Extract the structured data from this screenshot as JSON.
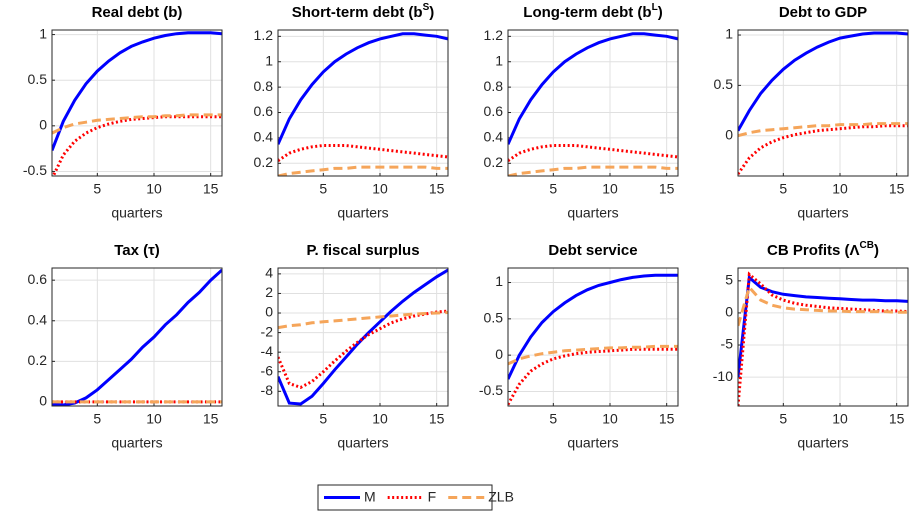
{
  "chart_data": [
    {
      "type": "line",
      "title": "Real debt (b)",
      "xlabel": "quarters",
      "x": [
        1,
        2,
        3,
        4,
        5,
        6,
        7,
        8,
        9,
        10,
        11,
        12,
        13,
        14,
        15,
        16
      ],
      "xlim": [
        1,
        16
      ],
      "xticks": [
        5,
        10,
        15
      ],
      "ylim": [
        -0.55,
        1.05
      ],
      "yticks": [
        -0.5,
        0,
        0.5,
        1
      ],
      "grid": true,
      "series": [
        {
          "name": "M",
          "color": "#0000ff",
          "dash": "solid",
          "values": [
            -0.27,
            0.05,
            0.28,
            0.46,
            0.6,
            0.71,
            0.8,
            0.87,
            0.92,
            0.96,
            0.99,
            1.01,
            1.02,
            1.02,
            1.02,
            1.01
          ]
        },
        {
          "name": "F",
          "color": "#ff0000",
          "dash": "dotted",
          "values": [
            -0.58,
            -0.32,
            -0.17,
            -0.08,
            -0.02,
            0.02,
            0.05,
            0.07,
            0.08,
            0.09,
            0.1,
            0.1,
            0.1,
            0.1,
            0.1,
            0.1
          ]
        },
        {
          "name": "ZLB",
          "color": "#f5a55a",
          "dash": "dashed",
          "values": [
            -0.08,
            -0.02,
            0.02,
            0.04,
            0.06,
            0.07,
            0.08,
            0.09,
            0.1,
            0.1,
            0.11,
            0.11,
            0.12,
            0.12,
            0.12,
            0.12
          ]
        }
      ]
    },
    {
      "type": "line",
      "title": {
        "text": "Short-term debt (b",
        "sup": "S",
        "close": ")"
      },
      "xlabel": "quarters",
      "x": [
        1,
        2,
        3,
        4,
        5,
        6,
        7,
        8,
        9,
        10,
        11,
        12,
        13,
        14,
        15,
        16
      ],
      "xlim": [
        1,
        16
      ],
      "xticks": [
        5,
        10,
        15
      ],
      "ylim": [
        0.1,
        1.25
      ],
      "yticks": [
        0.2,
        0.4,
        0.6,
        0.8,
        1,
        1.2
      ],
      "grid": true,
      "series": [
        {
          "name": "M",
          "color": "#0000ff",
          "dash": "solid",
          "values": [
            0.35,
            0.55,
            0.7,
            0.82,
            0.92,
            1.0,
            1.06,
            1.11,
            1.15,
            1.18,
            1.2,
            1.22,
            1.22,
            1.21,
            1.2,
            1.18
          ]
        },
        {
          "name": "F",
          "color": "#ff0000",
          "dash": "dotted",
          "values": [
            0.22,
            0.28,
            0.31,
            0.33,
            0.34,
            0.34,
            0.34,
            0.33,
            0.32,
            0.31,
            0.3,
            0.29,
            0.28,
            0.27,
            0.26,
            0.25
          ]
        },
        {
          "name": "ZLB",
          "color": "#f5a55a",
          "dash": "dashed",
          "values": [
            0.1,
            0.12,
            0.13,
            0.14,
            0.15,
            0.16,
            0.16,
            0.17,
            0.17,
            0.17,
            0.17,
            0.17,
            0.17,
            0.17,
            0.16,
            0.16
          ]
        }
      ]
    },
    {
      "type": "line",
      "title": {
        "text": "Long-term debt (b",
        "sup": "L",
        "close": ")"
      },
      "xlabel": "quarters",
      "x": [
        1,
        2,
        3,
        4,
        5,
        6,
        7,
        8,
        9,
        10,
        11,
        12,
        13,
        14,
        15,
        16
      ],
      "xlim": [
        1,
        16
      ],
      "xticks": [
        5,
        10,
        15
      ],
      "ylim": [
        0.1,
        1.25
      ],
      "yticks": [
        0.2,
        0.4,
        0.6,
        0.8,
        1,
        1.2
      ],
      "grid": true,
      "series": [
        {
          "name": "M",
          "color": "#0000ff",
          "dash": "solid",
          "values": [
            0.35,
            0.55,
            0.7,
            0.82,
            0.92,
            1.0,
            1.06,
            1.11,
            1.15,
            1.18,
            1.2,
            1.22,
            1.22,
            1.21,
            1.2,
            1.18
          ]
        },
        {
          "name": "F",
          "color": "#ff0000",
          "dash": "dotted",
          "values": [
            0.22,
            0.28,
            0.31,
            0.33,
            0.34,
            0.34,
            0.34,
            0.33,
            0.32,
            0.31,
            0.3,
            0.29,
            0.28,
            0.27,
            0.26,
            0.25
          ]
        },
        {
          "name": "ZLB",
          "color": "#f5a55a",
          "dash": "dashed",
          "values": [
            0.1,
            0.12,
            0.13,
            0.14,
            0.15,
            0.16,
            0.16,
            0.17,
            0.17,
            0.17,
            0.17,
            0.17,
            0.17,
            0.17,
            0.16,
            0.16
          ]
        }
      ]
    },
    {
      "type": "line",
      "title": "Debt to GDP",
      "xlabel": "quarters",
      "x": [
        1,
        2,
        3,
        4,
        5,
        6,
        7,
        8,
        9,
        10,
        11,
        12,
        13,
        14,
        15,
        16
      ],
      "xlim": [
        1,
        16
      ],
      "xticks": [
        5,
        10,
        15
      ],
      "ylim": [
        -0.4,
        1.05
      ],
      "yticks": [
        0,
        0.5,
        1
      ],
      "grid": true,
      "series": [
        {
          "name": "M",
          "color": "#0000ff",
          "dash": "solid",
          "values": [
            0.05,
            0.25,
            0.42,
            0.55,
            0.66,
            0.75,
            0.82,
            0.88,
            0.93,
            0.97,
            0.99,
            1.01,
            1.02,
            1.02,
            1.02,
            1.01
          ]
        },
        {
          "name": "F",
          "color": "#ff0000",
          "dash": "dotted",
          "values": [
            -0.38,
            -0.22,
            -0.12,
            -0.06,
            -0.02,
            0.01,
            0.03,
            0.05,
            0.06,
            0.07,
            0.08,
            0.09,
            0.09,
            0.1,
            0.1,
            0.1
          ]
        },
        {
          "name": "ZLB",
          "color": "#f5a55a",
          "dash": "dashed",
          "values": [
            0,
            0.03,
            0.05,
            0.06,
            0.07,
            0.08,
            0.09,
            0.1,
            0.1,
            0.11,
            0.11,
            0.11,
            0.12,
            0.12,
            0.12,
            0.12
          ]
        }
      ]
    },
    {
      "type": "line",
      "title": "Tax (τ)",
      "xlabel": "quarters",
      "x": [
        1,
        2,
        3,
        4,
        5,
        6,
        7,
        8,
        9,
        10,
        11,
        12,
        13,
        14,
        15,
        16
      ],
      "xlim": [
        1,
        16
      ],
      "xticks": [
        5,
        10,
        15
      ],
      "ylim": [
        -0.02,
        0.66
      ],
      "yticks": [
        0,
        0.2,
        0.4,
        0.6
      ],
      "grid": true,
      "series": [
        {
          "name": "M",
          "color": "#0000ff",
          "dash": "solid",
          "values": [
            -0.01,
            -0.015,
            -0.005,
            0.02,
            0.06,
            0.11,
            0.16,
            0.21,
            0.27,
            0.32,
            0.38,
            0.43,
            0.49,
            0.54,
            0.6,
            0.65
          ]
        },
        {
          "name": "F",
          "color": "#ff0000",
          "dash": "dotted",
          "values": [
            0,
            0,
            0,
            0,
            0,
            0,
            0,
            0,
            0,
            0,
            0,
            0,
            0,
            0,
            0,
            0
          ]
        },
        {
          "name": "ZLB",
          "color": "#f5a55a",
          "dash": "dashed",
          "values": [
            0,
            0,
            0,
            0,
            0,
            0,
            0,
            0,
            0,
            0,
            0,
            0,
            0,
            0,
            0,
            0
          ]
        }
      ]
    },
    {
      "type": "line",
      "title": "P. fiscal surplus",
      "xlabel": "quarters",
      "x": [
        1,
        2,
        3,
        4,
        5,
        6,
        7,
        8,
        9,
        10,
        11,
        12,
        13,
        14,
        15,
        16
      ],
      "xlim": [
        1,
        16
      ],
      "xticks": [
        5,
        10,
        15
      ],
      "ylim": [
        -9.5,
        4.6
      ],
      "yticks": [
        -8,
        -6,
        -4,
        -2,
        0,
        2,
        4
      ],
      "grid": true,
      "series": [
        {
          "name": "M",
          "color": "#0000ff",
          "dash": "solid",
          "values": [
            -6.5,
            -9.2,
            -9.3,
            -8.5,
            -7.2,
            -5.8,
            -4.5,
            -3.2,
            -2,
            -0.9,
            0.2,
            1.2,
            2.1,
            2.9,
            3.7,
            4.4
          ]
        },
        {
          "name": "F",
          "color": "#ff0000",
          "dash": "dotted",
          "values": [
            -4.5,
            -7.2,
            -7.6,
            -7.0,
            -6.0,
            -4.9,
            -3.9,
            -3.0,
            -2.2,
            -1.6,
            -1.0,
            -0.6,
            -0.3,
            -0.1,
            0.1,
            0.2
          ]
        },
        {
          "name": "ZLB",
          "color": "#f5a55a",
          "dash": "dashed",
          "values": [
            -1.5,
            -1.3,
            -1.2,
            -1.0,
            -0.9,
            -0.8,
            -0.7,
            -0.6,
            -0.5,
            -0.4,
            -0.3,
            -0.2,
            -0.1,
            -0.05,
            0,
            0.05
          ]
        }
      ]
    },
    {
      "type": "line",
      "title": "Debt service",
      "xlabel": "quarters",
      "x": [
        1,
        2,
        3,
        4,
        5,
        6,
        7,
        8,
        9,
        10,
        11,
        12,
        13,
        14,
        15,
        16
      ],
      "xlim": [
        1,
        16
      ],
      "xticks": [
        5,
        10,
        15
      ],
      "ylim": [
        -0.7,
        1.2
      ],
      "yticks": [
        -0.5,
        0,
        0.5,
        1
      ],
      "grid": true,
      "series": [
        {
          "name": "M",
          "color": "#0000ff",
          "dash": "solid",
          "values": [
            -0.33,
            0.0,
            0.25,
            0.45,
            0.6,
            0.72,
            0.82,
            0.9,
            0.96,
            1.0,
            1.04,
            1.07,
            1.09,
            1.1,
            1.1,
            1.1
          ]
        },
        {
          "name": "F",
          "color": "#ff0000",
          "dash": "dotted",
          "values": [
            -0.68,
            -0.4,
            -0.22,
            -0.12,
            -0.05,
            -0.01,
            0.02,
            0.04,
            0.05,
            0.06,
            0.07,
            0.08,
            0.08,
            0.08,
            0.08,
            0.08
          ]
        },
        {
          "name": "ZLB",
          "color": "#f5a55a",
          "dash": "dashed",
          "values": [
            -0.12,
            -0.05,
            -0.01,
            0.02,
            0.04,
            0.06,
            0.07,
            0.08,
            0.09,
            0.1,
            0.1,
            0.11,
            0.11,
            0.12,
            0.12,
            0.12
          ]
        }
      ]
    },
    {
      "type": "line",
      "title": {
        "text": "CB Profits (Λ",
        "sup": "CB",
        "close": ")"
      },
      "xlabel": "quarters",
      "x": [
        1,
        2,
        3,
        4,
        5,
        6,
        7,
        8,
        9,
        10,
        11,
        12,
        13,
        14,
        15,
        16
      ],
      "xlim": [
        1,
        16
      ],
      "xticks": [
        5,
        10,
        15
      ],
      "ylim": [
        -14.5,
        7
      ],
      "yticks": [
        -10,
        -5,
        0,
        5
      ],
      "grid": true,
      "series": [
        {
          "name": "M",
          "color": "#0000ff",
          "dash": "solid",
          "values": [
            -10,
            5.5,
            4,
            3.3,
            2.9,
            2.7,
            2.5,
            2.4,
            2.3,
            2.2,
            2.1,
            2.0,
            2.0,
            1.9,
            1.9,
            1.8
          ]
        },
        {
          "name": "F",
          "color": "#ff0000",
          "dash": "dotted",
          "values": [
            -14.5,
            6,
            4.5,
            2.8,
            2.0,
            1.5,
            1.2,
            1.0,
            0.8,
            0.7,
            0.6,
            0.5,
            0.4,
            0.3,
            0.3,
            0.2
          ]
        },
        {
          "name": "ZLB",
          "color": "#f5a55a",
          "dash": "dashed",
          "values": [
            -2,
            4,
            2,
            1.2,
            0.8,
            0.6,
            0.5,
            0.4,
            0.3,
            0.3,
            0.2,
            0.2,
            0.2,
            0.2,
            0.1,
            0.1
          ]
        }
      ]
    }
  ]
}
